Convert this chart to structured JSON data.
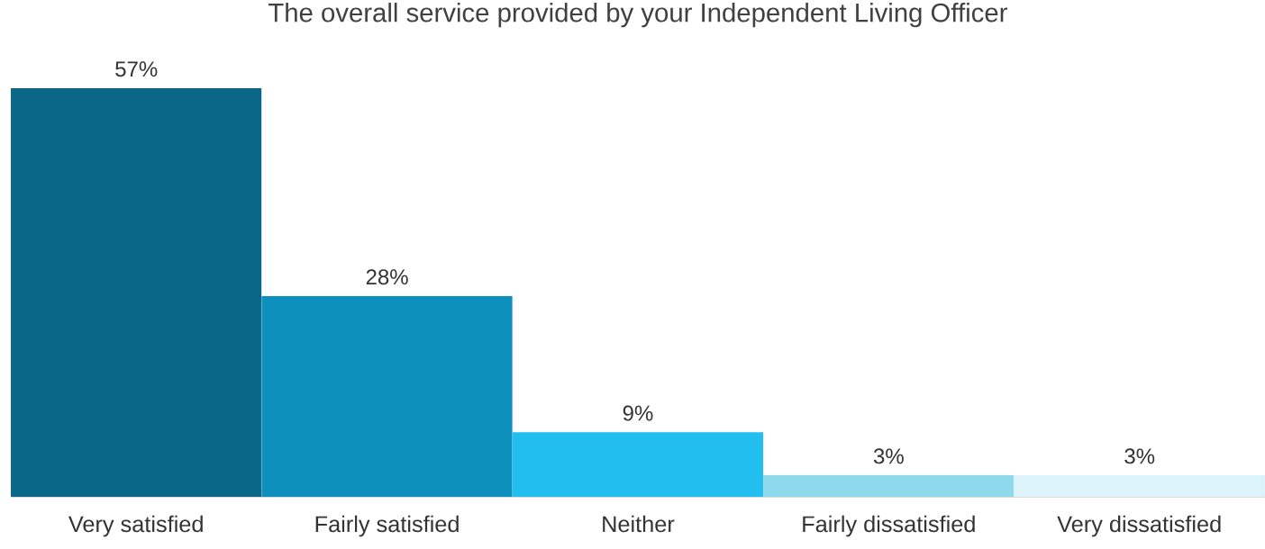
{
  "chart_data": {
    "type": "bar",
    "title": "The overall service provided by your Independent Living Officer",
    "categories": [
      "Very satisfied",
      "Fairly satisfied",
      "Neither",
      "Fairly dissatisfied",
      "Very dissatisfied"
    ],
    "values": [
      57,
      28,
      9,
      3,
      3
    ],
    "value_labels": [
      "57%",
      "28%",
      "9%",
      "3%",
      "3%"
    ],
    "colors": [
      "#0a6786",
      "#0d90bb",
      "#22bef0",
      "#8fd9ec",
      "#dcf3fa"
    ]
  }
}
